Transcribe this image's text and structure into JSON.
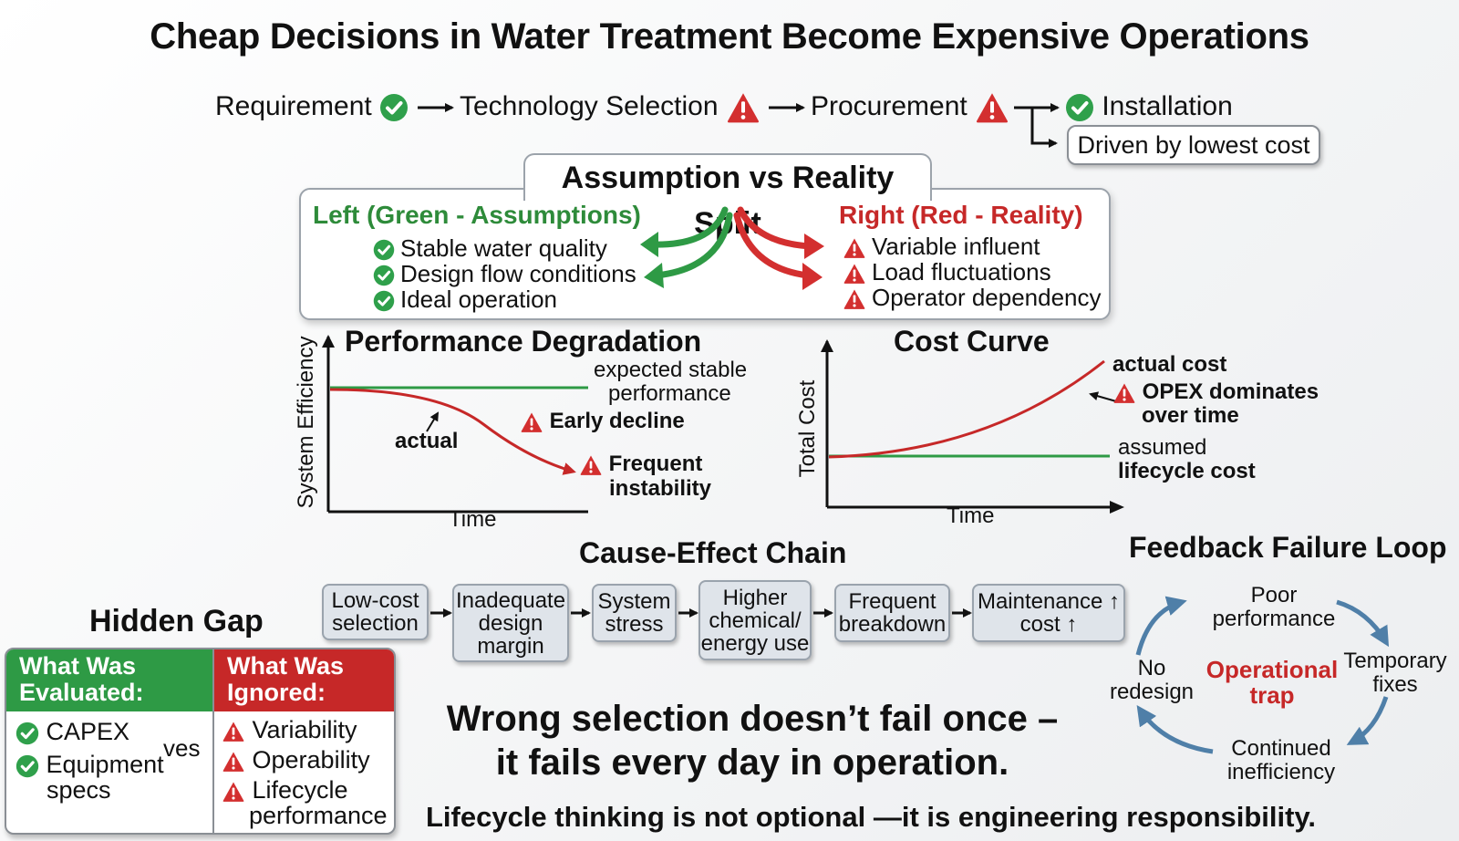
{
  "title": "Cheap Decisions in Water Treatment Become Expensive Operations",
  "process_flow": {
    "steps": [
      {
        "label": "Requirement",
        "status": "ok"
      },
      {
        "label": "Technology Selection",
        "status": "warning"
      },
      {
        "label": "Procurement",
        "status": "warning"
      },
      {
        "label": "Installation",
        "status": "ok"
      }
    ],
    "branch_note": "Driven by lowest cost"
  },
  "split": {
    "title": "Assumption vs Reality Split",
    "left_heading": "Left (Green - Assumptions)",
    "left_items": [
      "Stable water quality",
      "Design flow conditions",
      "Ideal operation"
    ],
    "right_heading": "Right (Red - Reality)",
    "right_items": [
      "Variable influent",
      "Load fluctuations",
      "Operator dependency"
    ]
  },
  "performance": {
    "title": "Performance Degradation",
    "ylabel": "System Efficiency",
    "xlabel": "Time",
    "expected_label_1": "expected stable",
    "expected_label_2": "performance",
    "actual_label": "actual",
    "early_decline": "Early decline",
    "frequent_1": "Frequent",
    "frequent_2": "instability"
  },
  "cost": {
    "title": "Cost Curve",
    "ylabel": "Total Cost",
    "xlabel": "Time",
    "actual_label": "actual cost",
    "opex_1": "OPEX dominates",
    "opex_2": "over time",
    "assumed_1": "assumed",
    "assumed_2": "lifecycle cost"
  },
  "cause_effect": {
    "title": "Cause-Effect Chain",
    "boxes": [
      [
        "Low-cost",
        "selection"
      ],
      [
        "Inadequate",
        "design",
        "margin"
      ],
      [
        "System",
        "stress"
      ],
      [
        "Higher",
        "chemical/",
        "energy use"
      ],
      [
        "Frequent",
        "breakdown"
      ],
      [
        "Maintenance ↑",
        "cost ↑"
      ]
    ]
  },
  "hidden_gap": {
    "title": "Hidden Gap",
    "evaluated_header_1": "What Was",
    "evaluated_header_2": "Evaluated:",
    "ignored_header_1": "What Was",
    "ignored_header_2": "Ignored:",
    "evaluated_items": [
      "CAPEX",
      "Equipment",
      "specs"
    ],
    "vs_label": "ves",
    "ignored_items": [
      "Variability",
      "Operability",
      "Lifecycle",
      "performance"
    ]
  },
  "feedback_loop": {
    "title": "Feedback Failure Loop",
    "center_1": "Operational",
    "center_2": "trap",
    "nodes": {
      "top_1": "Poor",
      "top_2": "performance",
      "right_1": "Temporary",
      "right_2": "fixes",
      "bottom_1": "Continued",
      "bottom_2": "inefficiency",
      "left_1": "No",
      "left_2": "redesign"
    }
  },
  "message": {
    "line1": "Wrong selection doesn’t fail once –",
    "line2": "it fails every day in operation.",
    "footer": "Lifecycle thinking is not optional —it is engineering responsibility."
  },
  "colors": {
    "green": "#2e8b3a",
    "red": "#c62828",
    "check_green": "#2fa04b",
    "warn_red": "#d32f2f",
    "loop_blue": "#4f7fa8"
  }
}
